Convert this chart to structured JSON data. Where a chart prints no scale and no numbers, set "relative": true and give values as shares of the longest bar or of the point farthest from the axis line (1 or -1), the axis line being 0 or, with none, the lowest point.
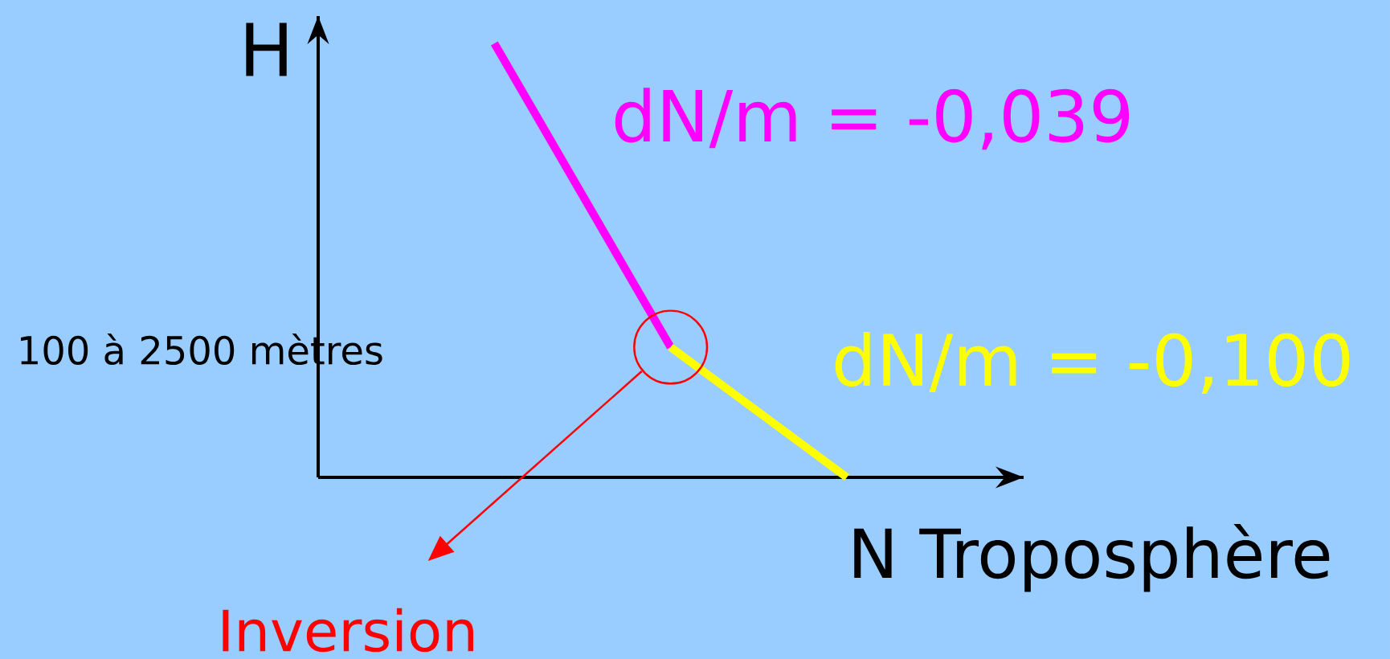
{
  "chart_data": {
    "type": "line",
    "relative": true,
    "xlabel": "N Troposphère",
    "ylabel": "H",
    "categories": [
      null,
      null,
      null,
      null
    ],
    "series": [
      {
        "name": "dN/m = -0,039",
        "color": "#ff00ff",
        "values": [
          null,
          1,
          0.3,
          null
        ]
      },
      {
        "name": "dN/m = -0,100",
        "color": "#ffff00",
        "values": [
          null,
          null,
          0.3,
          0
        ]
      }
    ],
    "annotations": [
      "100 à 2500 mètres",
      "Inversion"
    ]
  }
}
